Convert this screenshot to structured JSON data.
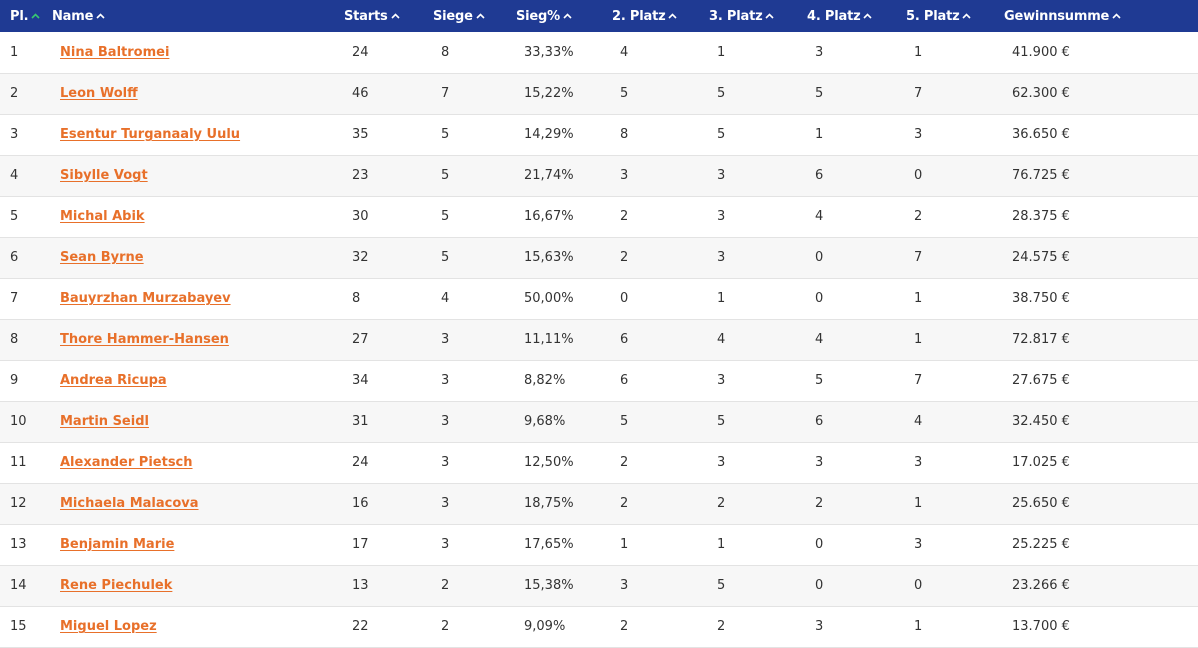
{
  "columns": [
    {
      "key": "pl",
      "label": "Pl.",
      "sort": "active"
    },
    {
      "key": "name",
      "label": "Name",
      "sort": "inactive"
    },
    {
      "key": "starts",
      "label": "Starts",
      "sort": "inactive"
    },
    {
      "key": "siege",
      "label": "Siege",
      "sort": "inactive"
    },
    {
      "key": "pct",
      "label": "Sieg%",
      "sort": "inactive"
    },
    {
      "key": "p2",
      "label": "2. Platz",
      "sort": "inactive"
    },
    {
      "key": "p3",
      "label": "3. Platz",
      "sort": "inactive"
    },
    {
      "key": "p4",
      "label": "4. Platz",
      "sort": "inactive"
    },
    {
      "key": "p5",
      "label": "5. Platz",
      "sort": "inactive"
    },
    {
      "key": "sum",
      "label": "Gewinnsumme",
      "sort": "inactive"
    }
  ],
  "icons": {
    "sort_arrow": "chevron-up-icon"
  },
  "colors": {
    "header_bg": "#1f3a93",
    "active_sort": "#37c871",
    "link": "#e8702a"
  },
  "rows": [
    {
      "pl": "1",
      "name": "Nina Baltromei",
      "starts": "24",
      "siege": "8",
      "pct": "33,33%",
      "p2": "4",
      "p3": "1",
      "p4": "3",
      "p5": "1",
      "sum": "41.900 €"
    },
    {
      "pl": "2",
      "name": "Leon Wolff",
      "starts": "46",
      "siege": "7",
      "pct": "15,22%",
      "p2": "5",
      "p3": "5",
      "p4": "5",
      "p5": "7",
      "sum": "62.300 €"
    },
    {
      "pl": "3",
      "name": "Esentur Turganaaly Uulu",
      "starts": "35",
      "siege": "5",
      "pct": "14,29%",
      "p2": "8",
      "p3": "5",
      "p4": "1",
      "p5": "3",
      "sum": "36.650 €"
    },
    {
      "pl": "4",
      "name": "Sibylle Vogt",
      "starts": "23",
      "siege": "5",
      "pct": "21,74%",
      "p2": "3",
      "p3": "3",
      "p4": "6",
      "p5": "0",
      "sum": "76.725 €"
    },
    {
      "pl": "5",
      "name": "Michal Abik",
      "starts": "30",
      "siege": "5",
      "pct": "16,67%",
      "p2": "2",
      "p3": "3",
      "p4": "4",
      "p5": "2",
      "sum": "28.375 €"
    },
    {
      "pl": "6",
      "name": "Sean Byrne",
      "starts": "32",
      "siege": "5",
      "pct": "15,63%",
      "p2": "2",
      "p3": "3",
      "p4": "0",
      "p5": "7",
      "sum": "24.575 €"
    },
    {
      "pl": "7",
      "name": "Bauyrzhan Murzabayev",
      "starts": "8",
      "siege": "4",
      "pct": "50,00%",
      "p2": "0",
      "p3": "1",
      "p4": "0",
      "p5": "1",
      "sum": "38.750 €"
    },
    {
      "pl": "8",
      "name": "Thore Hammer-Hansen",
      "starts": "27",
      "siege": "3",
      "pct": "11,11%",
      "p2": "6",
      "p3": "4",
      "p4": "4",
      "p5": "1",
      "sum": "72.817 €"
    },
    {
      "pl": "9",
      "name": "Andrea Ricupa",
      "starts": "34",
      "siege": "3",
      "pct": "8,82%",
      "p2": "6",
      "p3": "3",
      "p4": "5",
      "p5": "7",
      "sum": "27.675 €"
    },
    {
      "pl": "10",
      "name": "Martin Seidl",
      "starts": "31",
      "siege": "3",
      "pct": "9,68%",
      "p2": "5",
      "p3": "5",
      "p4": "6",
      "p5": "4",
      "sum": "32.450 €"
    },
    {
      "pl": "11",
      "name": "Alexander Pietsch",
      "starts": "24",
      "siege": "3",
      "pct": "12,50%",
      "p2": "2",
      "p3": "3",
      "p4": "3",
      "p5": "3",
      "sum": "17.025 €"
    },
    {
      "pl": "12",
      "name": "Michaela Malacova",
      "starts": "16",
      "siege": "3",
      "pct": "18,75%",
      "p2": "2",
      "p3": "2",
      "p4": "2",
      "p5": "1",
      "sum": "25.650 €"
    },
    {
      "pl": "13",
      "name": "Benjamin Marie",
      "starts": "17",
      "siege": "3",
      "pct": "17,65%",
      "p2": "1",
      "p3": "1",
      "p4": "0",
      "p5": "3",
      "sum": "25.225 €"
    },
    {
      "pl": "14",
      "name": "Rene Piechulek",
      "starts": "13",
      "siege": "2",
      "pct": "15,38%",
      "p2": "3",
      "p3": "5",
      "p4": "0",
      "p5": "0",
      "sum": "23.266 €"
    },
    {
      "pl": "15",
      "name": "Miguel Lopez",
      "starts": "22",
      "siege": "2",
      "pct": "9,09%",
      "p2": "2",
      "p3": "2",
      "p4": "3",
      "p5": "1",
      "sum": "13.700 €"
    }
  ]
}
